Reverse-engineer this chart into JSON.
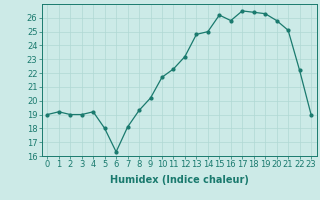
{
  "x": [
    0,
    1,
    2,
    3,
    4,
    5,
    6,
    7,
    8,
    9,
    10,
    11,
    12,
    13,
    14,
    15,
    16,
    17,
    18,
    19,
    20,
    21,
    22,
    23
  ],
  "y": [
    19.0,
    19.2,
    19.0,
    19.0,
    19.2,
    18.0,
    16.3,
    18.1,
    19.3,
    20.2,
    21.7,
    22.3,
    23.2,
    24.8,
    25.0,
    26.2,
    25.8,
    26.5,
    26.4,
    26.3,
    25.8,
    25.1,
    22.2,
    19.0
  ],
  "line_color": "#1a7a6e",
  "marker": "o",
  "markersize": 2.0,
  "linewidth": 0.9,
  "bg_color": "#cceae7",
  "grid_color": "#b0d8d4",
  "xlabel": "Humidex (Indice chaleur)",
  "xlabel_fontsize": 7,
  "xtick_labels": [
    "0",
    "1",
    "2",
    "3",
    "4",
    "5",
    "6",
    "7",
    "8",
    "9",
    "10",
    "11",
    "12",
    "13",
    "14",
    "15",
    "16",
    "17",
    "18",
    "19",
    "20",
    "21",
    "22",
    "23"
  ],
  "ylim": [
    16,
    27
  ],
  "yticks": [
    16,
    17,
    18,
    19,
    20,
    21,
    22,
    23,
    24,
    25,
    26
  ],
  "tick_fontsize": 6.0
}
